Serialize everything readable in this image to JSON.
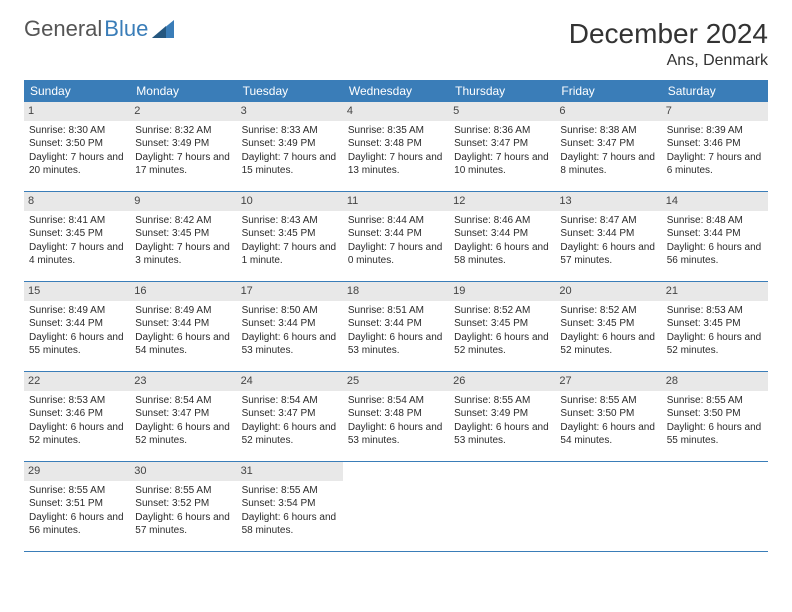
{
  "brand": {
    "part1": "General",
    "part2": "Blue"
  },
  "title": "December 2024",
  "location": "Ans, Denmark",
  "colors": {
    "header_bg": "#3a7db8",
    "header_text": "#ffffff",
    "daynum_bg": "#e8e8e8",
    "rule": "#3a7db8",
    "text": "#333333"
  },
  "weekdays": [
    "Sunday",
    "Monday",
    "Tuesday",
    "Wednesday",
    "Thursday",
    "Friday",
    "Saturday"
  ],
  "days": [
    {
      "n": "1",
      "sunrise": "Sunrise: 8:30 AM",
      "sunset": "Sunset: 3:50 PM",
      "day": "Daylight: 7 hours and 20 minutes."
    },
    {
      "n": "2",
      "sunrise": "Sunrise: 8:32 AM",
      "sunset": "Sunset: 3:49 PM",
      "day": "Daylight: 7 hours and 17 minutes."
    },
    {
      "n": "3",
      "sunrise": "Sunrise: 8:33 AM",
      "sunset": "Sunset: 3:49 PM",
      "day": "Daylight: 7 hours and 15 minutes."
    },
    {
      "n": "4",
      "sunrise": "Sunrise: 8:35 AM",
      "sunset": "Sunset: 3:48 PM",
      "day": "Daylight: 7 hours and 13 minutes."
    },
    {
      "n": "5",
      "sunrise": "Sunrise: 8:36 AM",
      "sunset": "Sunset: 3:47 PM",
      "day": "Daylight: 7 hours and 10 minutes."
    },
    {
      "n": "6",
      "sunrise": "Sunrise: 8:38 AM",
      "sunset": "Sunset: 3:47 PM",
      "day": "Daylight: 7 hours and 8 minutes."
    },
    {
      "n": "7",
      "sunrise": "Sunrise: 8:39 AM",
      "sunset": "Sunset: 3:46 PM",
      "day": "Daylight: 7 hours and 6 minutes."
    },
    {
      "n": "8",
      "sunrise": "Sunrise: 8:41 AM",
      "sunset": "Sunset: 3:45 PM",
      "day": "Daylight: 7 hours and 4 minutes."
    },
    {
      "n": "9",
      "sunrise": "Sunrise: 8:42 AM",
      "sunset": "Sunset: 3:45 PM",
      "day": "Daylight: 7 hours and 3 minutes."
    },
    {
      "n": "10",
      "sunrise": "Sunrise: 8:43 AM",
      "sunset": "Sunset: 3:45 PM",
      "day": "Daylight: 7 hours and 1 minute."
    },
    {
      "n": "11",
      "sunrise": "Sunrise: 8:44 AM",
      "sunset": "Sunset: 3:44 PM",
      "day": "Daylight: 7 hours and 0 minutes."
    },
    {
      "n": "12",
      "sunrise": "Sunrise: 8:46 AM",
      "sunset": "Sunset: 3:44 PM",
      "day": "Daylight: 6 hours and 58 minutes."
    },
    {
      "n": "13",
      "sunrise": "Sunrise: 8:47 AM",
      "sunset": "Sunset: 3:44 PM",
      "day": "Daylight: 6 hours and 57 minutes."
    },
    {
      "n": "14",
      "sunrise": "Sunrise: 8:48 AM",
      "sunset": "Sunset: 3:44 PM",
      "day": "Daylight: 6 hours and 56 minutes."
    },
    {
      "n": "15",
      "sunrise": "Sunrise: 8:49 AM",
      "sunset": "Sunset: 3:44 PM",
      "day": "Daylight: 6 hours and 55 minutes."
    },
    {
      "n": "16",
      "sunrise": "Sunrise: 8:49 AM",
      "sunset": "Sunset: 3:44 PM",
      "day": "Daylight: 6 hours and 54 minutes."
    },
    {
      "n": "17",
      "sunrise": "Sunrise: 8:50 AM",
      "sunset": "Sunset: 3:44 PM",
      "day": "Daylight: 6 hours and 53 minutes."
    },
    {
      "n": "18",
      "sunrise": "Sunrise: 8:51 AM",
      "sunset": "Sunset: 3:44 PM",
      "day": "Daylight: 6 hours and 53 minutes."
    },
    {
      "n": "19",
      "sunrise": "Sunrise: 8:52 AM",
      "sunset": "Sunset: 3:45 PM",
      "day": "Daylight: 6 hours and 52 minutes."
    },
    {
      "n": "20",
      "sunrise": "Sunrise: 8:52 AM",
      "sunset": "Sunset: 3:45 PM",
      "day": "Daylight: 6 hours and 52 minutes."
    },
    {
      "n": "21",
      "sunrise": "Sunrise: 8:53 AM",
      "sunset": "Sunset: 3:45 PM",
      "day": "Daylight: 6 hours and 52 minutes."
    },
    {
      "n": "22",
      "sunrise": "Sunrise: 8:53 AM",
      "sunset": "Sunset: 3:46 PM",
      "day": "Daylight: 6 hours and 52 minutes."
    },
    {
      "n": "23",
      "sunrise": "Sunrise: 8:54 AM",
      "sunset": "Sunset: 3:47 PM",
      "day": "Daylight: 6 hours and 52 minutes."
    },
    {
      "n": "24",
      "sunrise": "Sunrise: 8:54 AM",
      "sunset": "Sunset: 3:47 PM",
      "day": "Daylight: 6 hours and 52 minutes."
    },
    {
      "n": "25",
      "sunrise": "Sunrise: 8:54 AM",
      "sunset": "Sunset: 3:48 PM",
      "day": "Daylight: 6 hours and 53 minutes."
    },
    {
      "n": "26",
      "sunrise": "Sunrise: 8:55 AM",
      "sunset": "Sunset: 3:49 PM",
      "day": "Daylight: 6 hours and 53 minutes."
    },
    {
      "n": "27",
      "sunrise": "Sunrise: 8:55 AM",
      "sunset": "Sunset: 3:50 PM",
      "day": "Daylight: 6 hours and 54 minutes."
    },
    {
      "n": "28",
      "sunrise": "Sunrise: 8:55 AM",
      "sunset": "Sunset: 3:50 PM",
      "day": "Daylight: 6 hours and 55 minutes."
    },
    {
      "n": "29",
      "sunrise": "Sunrise: 8:55 AM",
      "sunset": "Sunset: 3:51 PM",
      "day": "Daylight: 6 hours and 56 minutes."
    },
    {
      "n": "30",
      "sunrise": "Sunrise: 8:55 AM",
      "sunset": "Sunset: 3:52 PM",
      "day": "Daylight: 6 hours and 57 minutes."
    },
    {
      "n": "31",
      "sunrise": "Sunrise: 8:55 AM",
      "sunset": "Sunset: 3:54 PM",
      "day": "Daylight: 6 hours and 58 minutes."
    }
  ],
  "calendar": {
    "start_weekday": 0,
    "days_in_month": 31,
    "weeks": 5
  }
}
